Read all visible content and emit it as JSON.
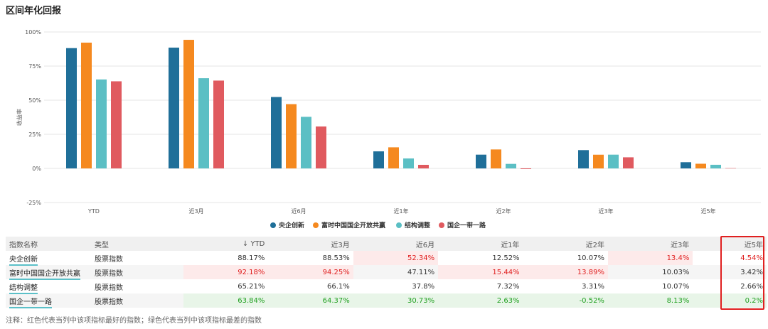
{
  "title": "区间年化回报",
  "chart_data": {
    "type": "bar",
    "ylabel": "收益率",
    "ylim": [
      -25,
      100
    ],
    "yticks": [
      "100%",
      "75%",
      "50%",
      "25%",
      "0%",
      "-25%"
    ],
    "ytick_values": [
      100,
      75,
      50,
      25,
      0,
      -25
    ],
    "categories": [
      "YTD",
      "近3月",
      "近6月",
      "近1年",
      "近2年",
      "近3年",
      "近5年"
    ],
    "series": [
      {
        "name": "央企创新",
        "color": "#1f6f99",
        "values": [
          88.17,
          88.53,
          52.34,
          12.52,
          10.07,
          13.4,
          4.54
        ]
      },
      {
        "name": "富时中国国企开放共赢",
        "color": "#f5891f",
        "values": [
          92.18,
          94.25,
          47.11,
          15.44,
          13.89,
          10.03,
          3.42
        ]
      },
      {
        "name": "结构调整",
        "color": "#5bbfc4",
        "values": [
          65.21,
          66.1,
          37.8,
          7.32,
          3.31,
          10.07,
          2.66
        ]
      },
      {
        "name": "国企一带一路",
        "color": "#e05a5f",
        "values": [
          63.84,
          64.37,
          30.73,
          2.63,
          -0.52,
          8.13,
          0.2
        ]
      }
    ]
  },
  "table": {
    "headers": [
      "指数名称",
      "类型",
      "YTD",
      "近3月",
      "近6月",
      "近1年",
      "近2年",
      "近3年",
      "近5年"
    ],
    "sort_arrow": "↓",
    "rows": [
      {
        "name": "央企创新",
        "type": "股票指数",
        "values": [
          "88.17%",
          "88.53%",
          "52.34%",
          "12.52%",
          "10.07%",
          "13.4%",
          "4.54%"
        ]
      },
      {
        "name": "富时中国国企开放共赢",
        "type": "股票指数",
        "values": [
          "92.18%",
          "94.25%",
          "47.11%",
          "15.44%",
          "13.89%",
          "10.03%",
          "3.42%"
        ]
      },
      {
        "name": "结构调整",
        "type": "股票指数",
        "values": [
          "65.21%",
          "66.1%",
          "37.8%",
          "7.32%",
          "3.31%",
          "10.07%",
          "2.66%"
        ]
      },
      {
        "name": "国企一带一路",
        "type": "股票指数",
        "values": [
          "63.84%",
          "64.37%",
          "30.73%",
          "2.63%",
          "-0.52%",
          "8.13%",
          "0.2%"
        ]
      }
    ]
  },
  "note": "注释：红色代表当列中该项指标最好的指数；绿色代表当列中该项指标最差的指数"
}
